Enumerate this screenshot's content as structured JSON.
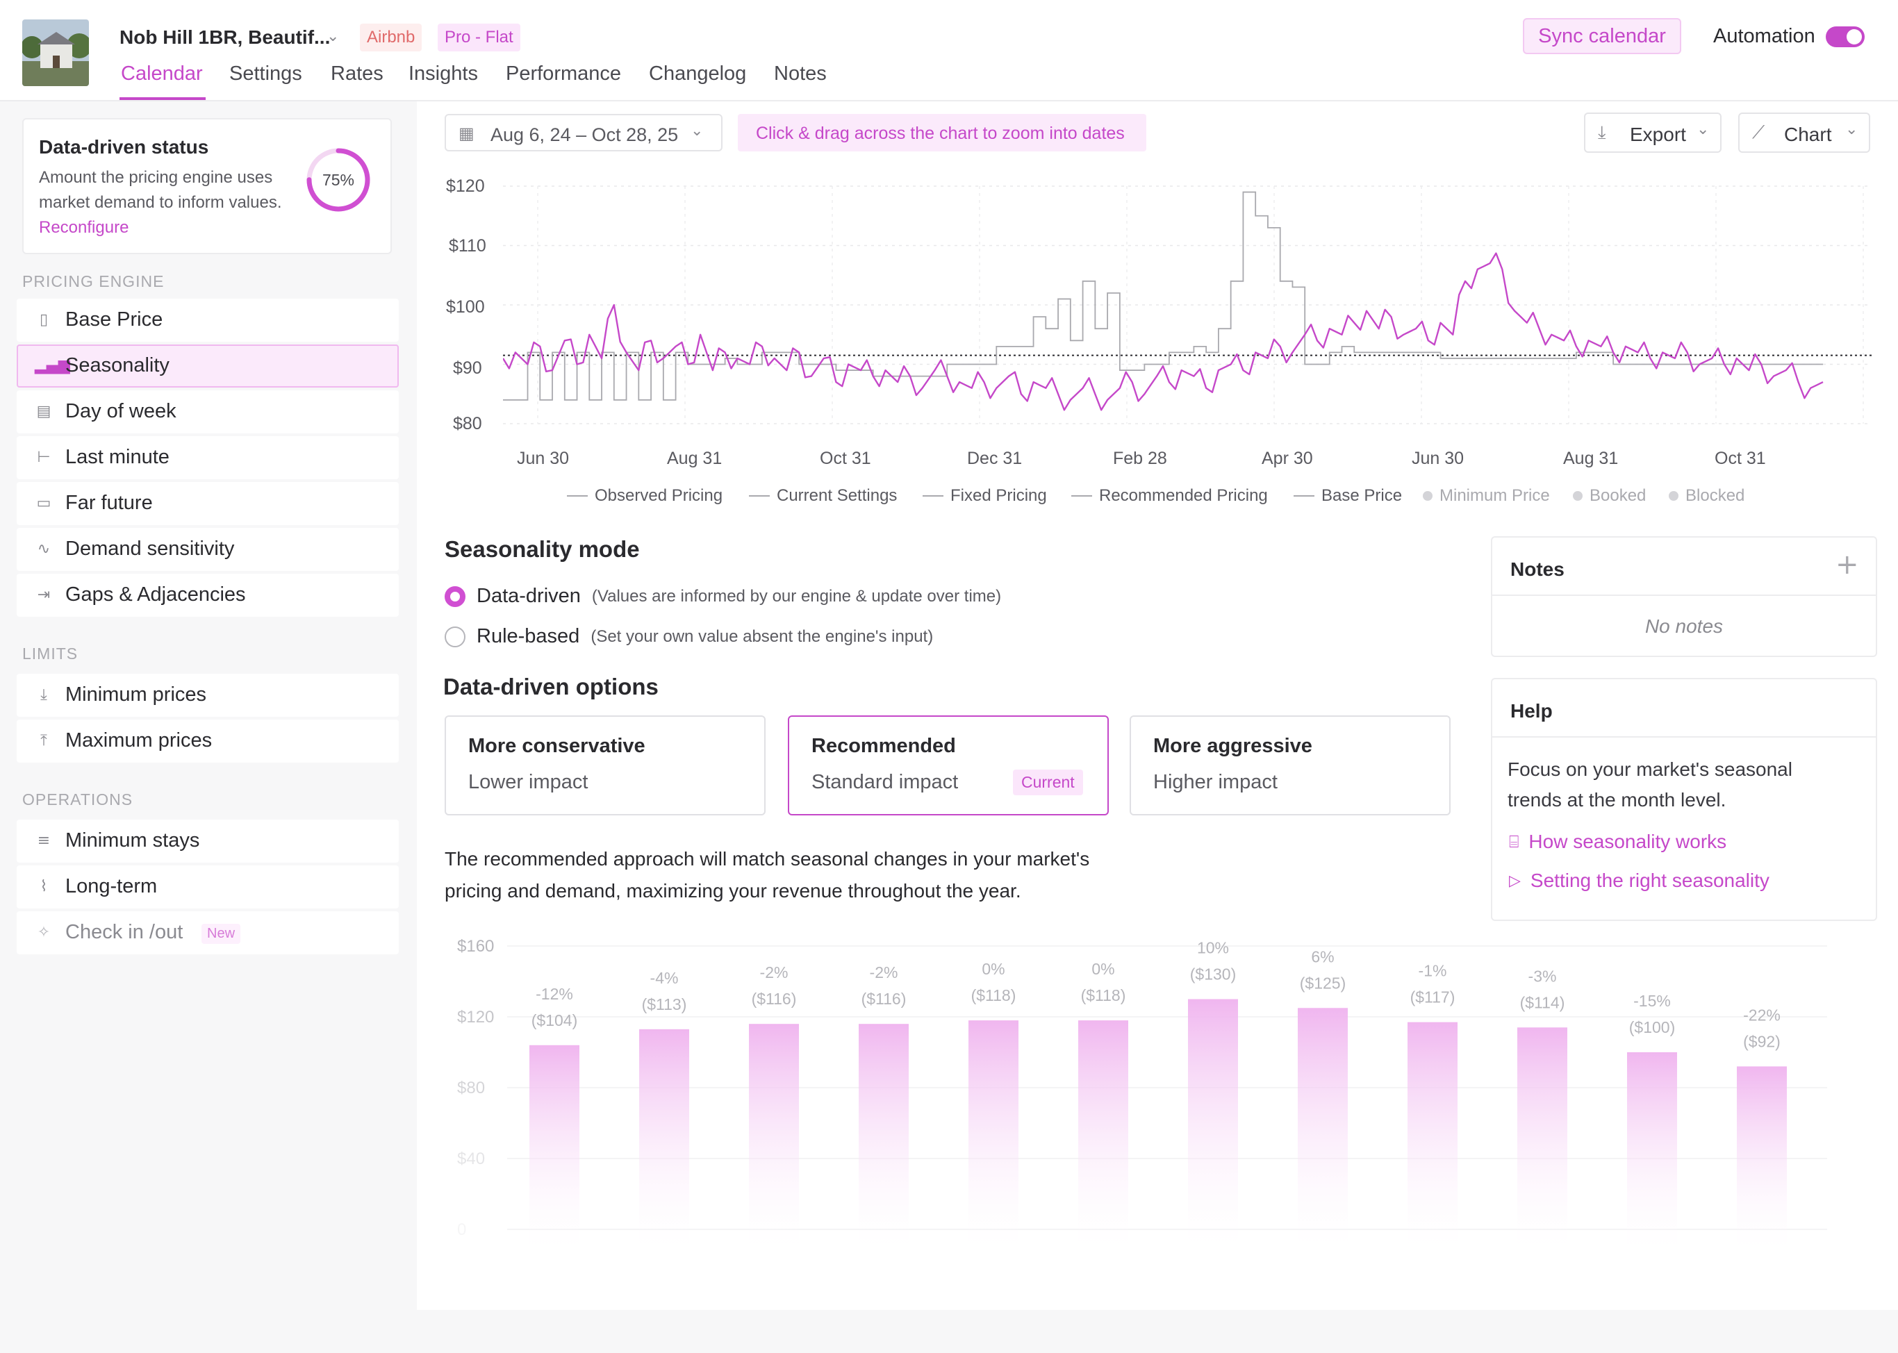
{
  "header": {
    "listing_title": "Nob Hill 1BR, Beautif...",
    "platform_badge": "Airbnb",
    "plan_badge": "Pro - Flat",
    "tabs": [
      "Calendar",
      "Settings",
      "Rates",
      "Insights",
      "Performance",
      "Changelog",
      "Notes"
    ],
    "sync_label": "Sync calendar",
    "automation_label": "Automation",
    "automation_on": true
  },
  "status_card": {
    "title": "Data-driven status",
    "description": "Amount the pricing engine uses market demand to inform values.",
    "link": "Reconfigure",
    "percent_label": "75%",
    "percent_value": 75
  },
  "sidebar": {
    "pricing_engine_label": "PRICING ENGINE",
    "pricing_items": [
      {
        "label": "Base Price",
        "icon": "tag-icon"
      },
      {
        "label": "Seasonality",
        "icon": "bar-chart-icon"
      },
      {
        "label": "Day of week",
        "icon": "calendar-grid-icon"
      },
      {
        "label": "Last minute",
        "icon": "arrow-left-bar-icon"
      },
      {
        "label": "Far future",
        "icon": "arrow-right-bar-icon"
      },
      {
        "label": "Demand sensitivity",
        "icon": "wave-icon"
      },
      {
        "label": "Gaps & Adjacencies",
        "icon": "gap-icon"
      }
    ],
    "limits_label": "LIMITS",
    "limit_items": [
      {
        "label": "Minimum prices",
        "icon": "arrow-down-icon"
      },
      {
        "label": "Maximum prices",
        "icon": "arrow-up-icon"
      }
    ],
    "operations_label": "OPERATIONS",
    "operation_items": [
      {
        "label": "Minimum stays",
        "icon": "lines-icon"
      },
      {
        "label": "Long-term",
        "icon": "road-icon"
      },
      {
        "label": "Check in /out",
        "icon": "sparkle-icon",
        "badge": "New"
      }
    ]
  },
  "toolbar": {
    "date_range": "Aug 6, 24 – Oct 28, 25",
    "zoom_hint": "Click & drag across the chart to zoom into dates",
    "export_label": "Export",
    "chart_label": "Chart"
  },
  "chart_data": [
    {
      "type": "line",
      "y_ticks": [
        "$120",
        "$110",
        "$100",
        "$90",
        "$80"
      ],
      "x_ticks": [
        "Jun 30",
        "Aug 31",
        "Oct 31",
        "Dec 31",
        "Feb 28",
        "Apr 30",
        "Jun 30",
        "Aug 31",
        "Oct 31"
      ],
      "ylim": [
        80,
        120
      ],
      "legend": [
        "Observed Pricing",
        "Current Settings",
        "Fixed Pricing",
        "Recommended Pricing",
        "Base Price",
        "Minimum Price",
        "Booked",
        "Blocked"
      ],
      "base_price": 91.5,
      "series": [
        {
          "values": [
            91,
            92,
            90,
            93,
            89,
            94,
            90,
            95,
            91,
            100,
            92,
            89,
            94,
            91,
            93,
            90,
            95,
            89,
            92,
            91,
            90,
            93,
            91,
            89,
            92,
            88,
            91,
            87,
            90,
            89,
            88,
            89,
            87,
            88,
            86,
            89,
            88,
            87,
            86,
            87,
            86,
            88,
            85,
            87,
            86,
            85,
            84,
            86,
            85,
            84,
            86,
            87,
            85,
            88,
            87,
            89,
            88,
            86,
            89,
            90,
            89,
            92,
            91,
            93,
            92,
            95,
            94,
            96,
            95,
            97,
            99,
            96,
            98,
            95,
            96,
            94,
            97,
            95,
            104,
            106,
            107,
            106,
            99,
            97,
            96,
            95,
            94,
            93,
            94,
            93,
            92,
            93,
            92,
            91,
            92,
            91,
            92,
            90,
            91,
            90,
            91,
            89,
            90,
            88,
            89,
            87,
            86,
            87
          ]
        },
        {
          "values": [
            84,
            84,
            92,
            84,
            92,
            84,
            92,
            84,
            92,
            84,
            92,
            84,
            92,
            84,
            92,
            90,
            90,
            90,
            91,
            90,
            90,
            92,
            92,
            92,
            90,
            90,
            90,
            89,
            89,
            89,
            88,
            88,
            88,
            88,
            88,
            88,
            90,
            90,
            90,
            90,
            93,
            93,
            93,
            98,
            96,
            101,
            94,
            104,
            96,
            102,
            89,
            89,
            90,
            90,
            92,
            92,
            93,
            92,
            96,
            104,
            119,
            115,
            113,
            104,
            103,
            90,
            90,
            92,
            93,
            92,
            92,
            92,
            92,
            92,
            92,
            92,
            91,
            91,
            91,
            91,
            91,
            91,
            91,
            91,
            91,
            91,
            91,
            92,
            92,
            92,
            90,
            90,
            90,
            90,
            90,
            90,
            90,
            90,
            90,
            90,
            90,
            90,
            90,
            90,
            90,
            90,
            90,
            90
          ]
        }
      ]
    },
    {
      "type": "bar",
      "y_ticks": [
        "$160",
        "$120",
        "$80",
        "$40",
        "0"
      ],
      "ylim": [
        0,
        160
      ],
      "values": [
        104,
        113,
        116,
        116,
        118,
        118,
        130,
        125,
        117,
        114,
        100,
        92
      ],
      "pct_labels": [
        "-12%",
        "-4%",
        "-2%",
        "-2%",
        "0%",
        "0%",
        "10%",
        "6%",
        "-1%",
        "-3%",
        "-15%",
        "-22%"
      ],
      "value_labels": [
        "($104)",
        "($113)",
        "($116)",
        "($116)",
        "($118)",
        "($118)",
        "($130)",
        "($125)",
        "($117)",
        "($114)",
        "($100)",
        "($92)"
      ]
    }
  ],
  "seasonality": {
    "mode_title": "Seasonality mode",
    "data_driven_label": "Data-driven",
    "data_driven_hint": "(Values are informed by our engine & update over time)",
    "rule_based_label": "Rule-based",
    "rule_based_hint": "(Set your own value absent the engine's input)",
    "options_title": "Data-driven options",
    "options": [
      {
        "title": "More conservative",
        "sub": "Lower impact"
      },
      {
        "title": "Recommended",
        "sub": "Standard impact",
        "badge": "Current"
      },
      {
        "title": "More aggressive",
        "sub": "Higher impact"
      }
    ],
    "description_line1": "The recommended approach will match seasonal changes in your market's",
    "description_line2": "pricing and demand, maximizing your revenue throughout the year."
  },
  "notes": {
    "title": "Notes",
    "empty": "No notes"
  },
  "help": {
    "title": "Help",
    "text_line1": "Focus on your market's seasonal",
    "text_line2": "trends at the month level.",
    "link1": "How seasonality works",
    "link2": "Setting the right seasonality"
  },
  "colors": {
    "accent": "#c548c9",
    "observed": "#c548c9",
    "current": "#9a9aa0"
  }
}
